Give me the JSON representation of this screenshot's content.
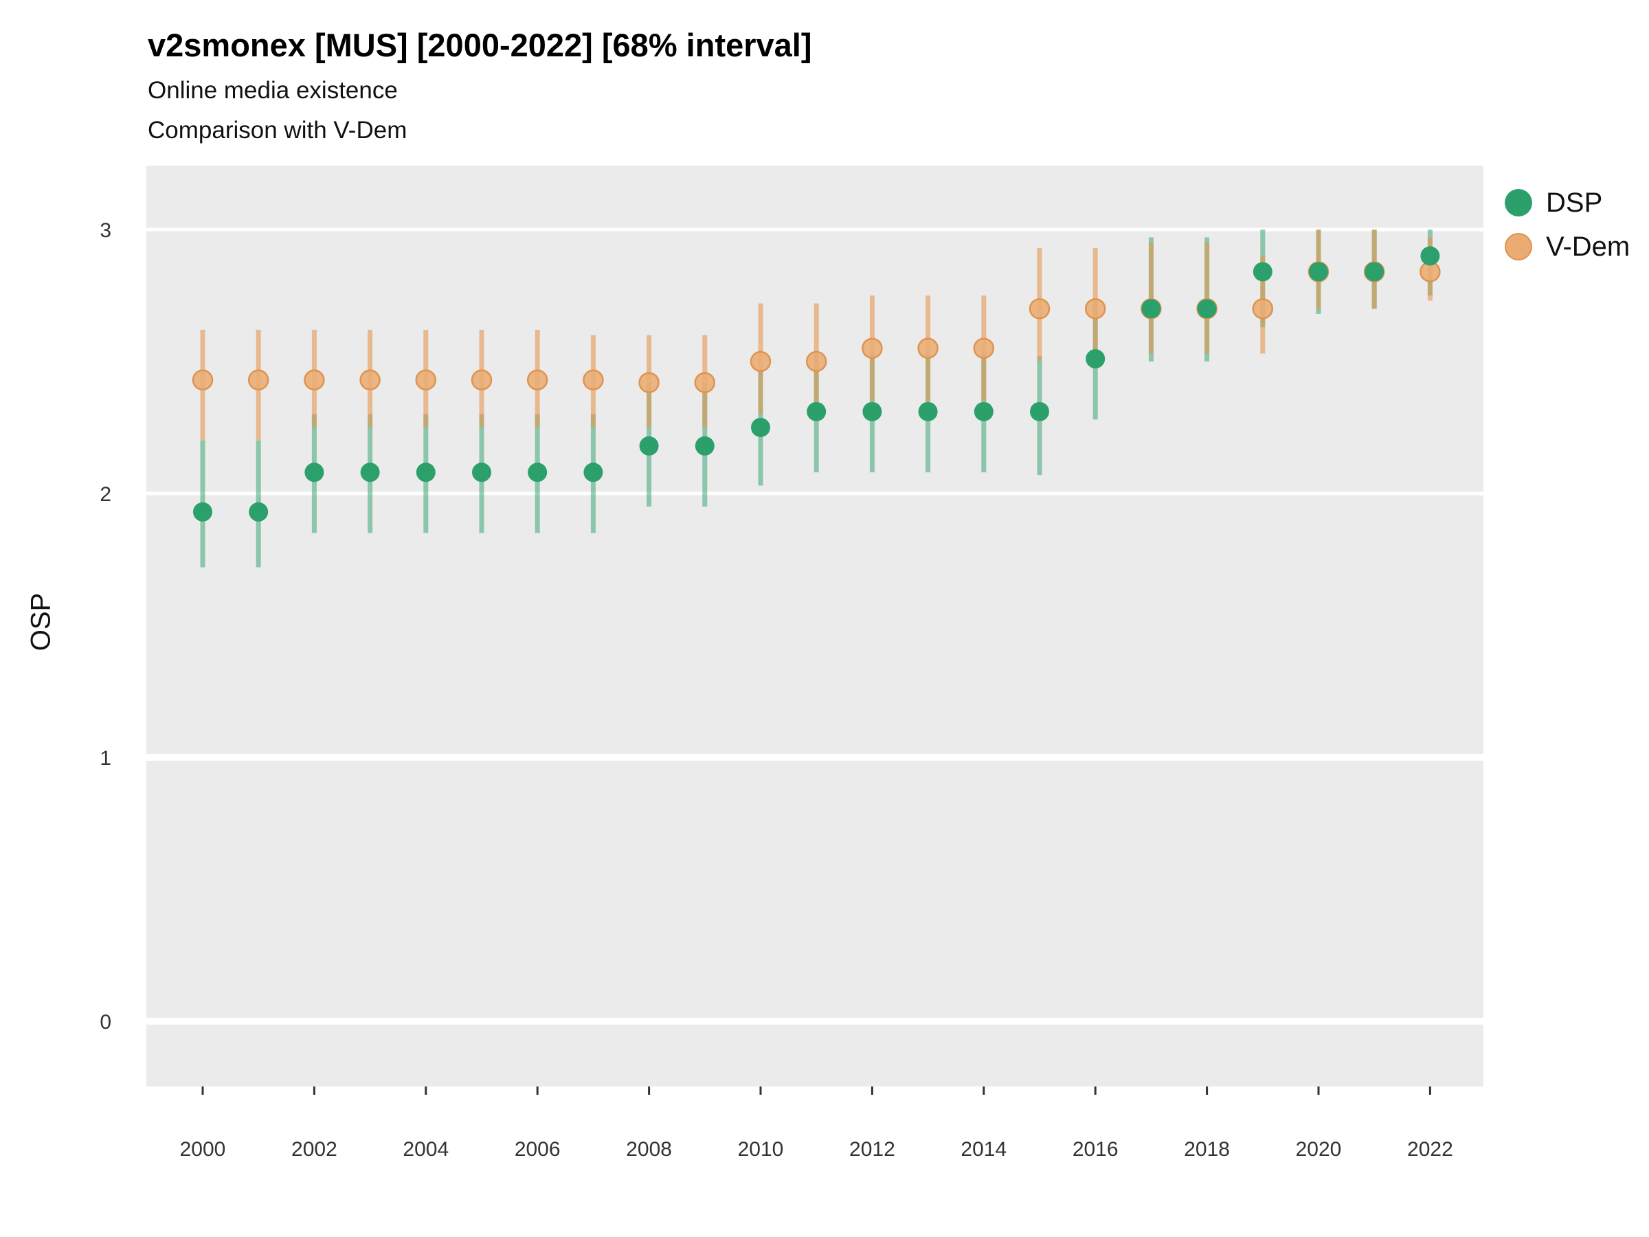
{
  "chart_data": {
    "type": "scatter",
    "title": "v2smonex [MUS] [2000-2022] [68% interval]",
    "subtitle": "Online media existence",
    "subtitle2": "Comparison with V-Dem",
    "ylabel": "OSP",
    "xlabel": "",
    "ylim": [
      -0.25,
      3.25
    ],
    "y_ticks": [
      0,
      1,
      2,
      3
    ],
    "x_ticks": [
      2000,
      2002,
      2004,
      2006,
      2008,
      2010,
      2012,
      2014,
      2016,
      2018,
      2020,
      2022
    ],
    "years": [
      2000,
      2001,
      2002,
      2003,
      2004,
      2005,
      2006,
      2007,
      2008,
      2009,
      2010,
      2011,
      2012,
      2013,
      2014,
      2015,
      2016,
      2017,
      2018,
      2019,
      2020,
      2021,
      2022
    ],
    "interval_level": "68%",
    "legend_position": "right",
    "layout": {
      "panel_bg": "#EBEBEB",
      "grid_color": "#FFFFFF",
      "axis_text_color": "#333333"
    },
    "series": [
      {
        "name": "DSP",
        "point_fill": "#2BA06A",
        "point_stroke": "#238C5C",
        "interval_color": "rgba(43,160,106,0.5)",
        "values": [
          1.93,
          1.93,
          2.08,
          2.08,
          2.08,
          2.08,
          2.08,
          2.08,
          2.18,
          2.18,
          2.25,
          2.31,
          2.31,
          2.31,
          2.31,
          2.31,
          2.51,
          2.7,
          2.7,
          2.84,
          2.84,
          2.84,
          2.9
        ],
        "lower": [
          1.72,
          1.72,
          1.85,
          1.85,
          1.85,
          1.85,
          1.85,
          1.85,
          1.95,
          1.95,
          2.03,
          2.08,
          2.08,
          2.08,
          2.08,
          2.07,
          2.28,
          2.5,
          2.5,
          2.63,
          2.68,
          2.7,
          2.75
        ],
        "upper": [
          2.2,
          2.2,
          2.3,
          2.3,
          2.3,
          2.3,
          2.3,
          2.3,
          2.42,
          2.42,
          2.47,
          2.53,
          2.53,
          2.53,
          2.53,
          2.52,
          2.73,
          2.97,
          2.97,
          3.0,
          3.0,
          3.0,
          3.0
        ]
      },
      {
        "name": "V-Dem",
        "point_fill": "#EBAC74",
        "point_stroke": "#DE9450",
        "interval_color": "rgba(230,150,80,0.6)",
        "values": [
          2.43,
          2.43,
          2.43,
          2.43,
          2.43,
          2.43,
          2.43,
          2.43,
          2.42,
          2.42,
          2.5,
          2.5,
          2.55,
          2.55,
          2.55,
          2.7,
          2.7,
          2.7,
          2.7,
          2.7,
          2.84,
          2.84,
          2.84
        ],
        "lower": [
          2.2,
          2.2,
          2.25,
          2.25,
          2.25,
          2.25,
          2.25,
          2.25,
          2.25,
          2.25,
          2.3,
          2.3,
          2.35,
          2.35,
          2.35,
          2.5,
          2.5,
          2.53,
          2.53,
          2.53,
          2.7,
          2.7,
          2.73
        ],
        "upper": [
          2.62,
          2.62,
          2.62,
          2.62,
          2.62,
          2.62,
          2.62,
          2.6,
          2.6,
          2.6,
          2.72,
          2.72,
          2.75,
          2.75,
          2.75,
          2.93,
          2.93,
          2.95,
          2.95,
          2.9,
          3.0,
          3.0,
          2.97
        ]
      }
    ]
  }
}
